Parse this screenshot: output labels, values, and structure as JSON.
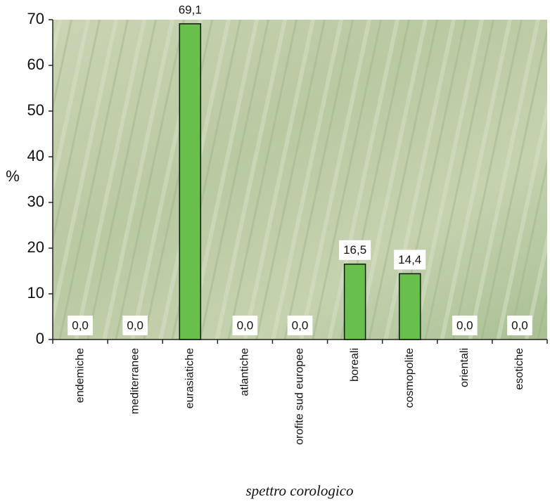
{
  "chart_data": {
    "type": "bar",
    "title": "spettro corologico",
    "y_label": "%",
    "categories": [
      "endemiche",
      "mediterranee",
      "eurasiatiche",
      "atlantiche",
      "orofite sud europee",
      "boreali",
      "cosmopolite",
      "orientali",
      "esotiche"
    ],
    "values": [
      0,
      0,
      69.1,
      0,
      0,
      16.5,
      14.4,
      0,
      0
    ],
    "value_labels": [
      "0,0",
      "0,0",
      "69,1",
      "0,0",
      "0,0",
      "16,5",
      "14,4",
      "0,0",
      "0,0"
    ],
    "color": "#69bf4b",
    "ylim": [
      0,
      70
    ],
    "yticks": [
      0,
      10,
      20,
      30,
      40,
      50,
      60,
      70
    ]
  }
}
